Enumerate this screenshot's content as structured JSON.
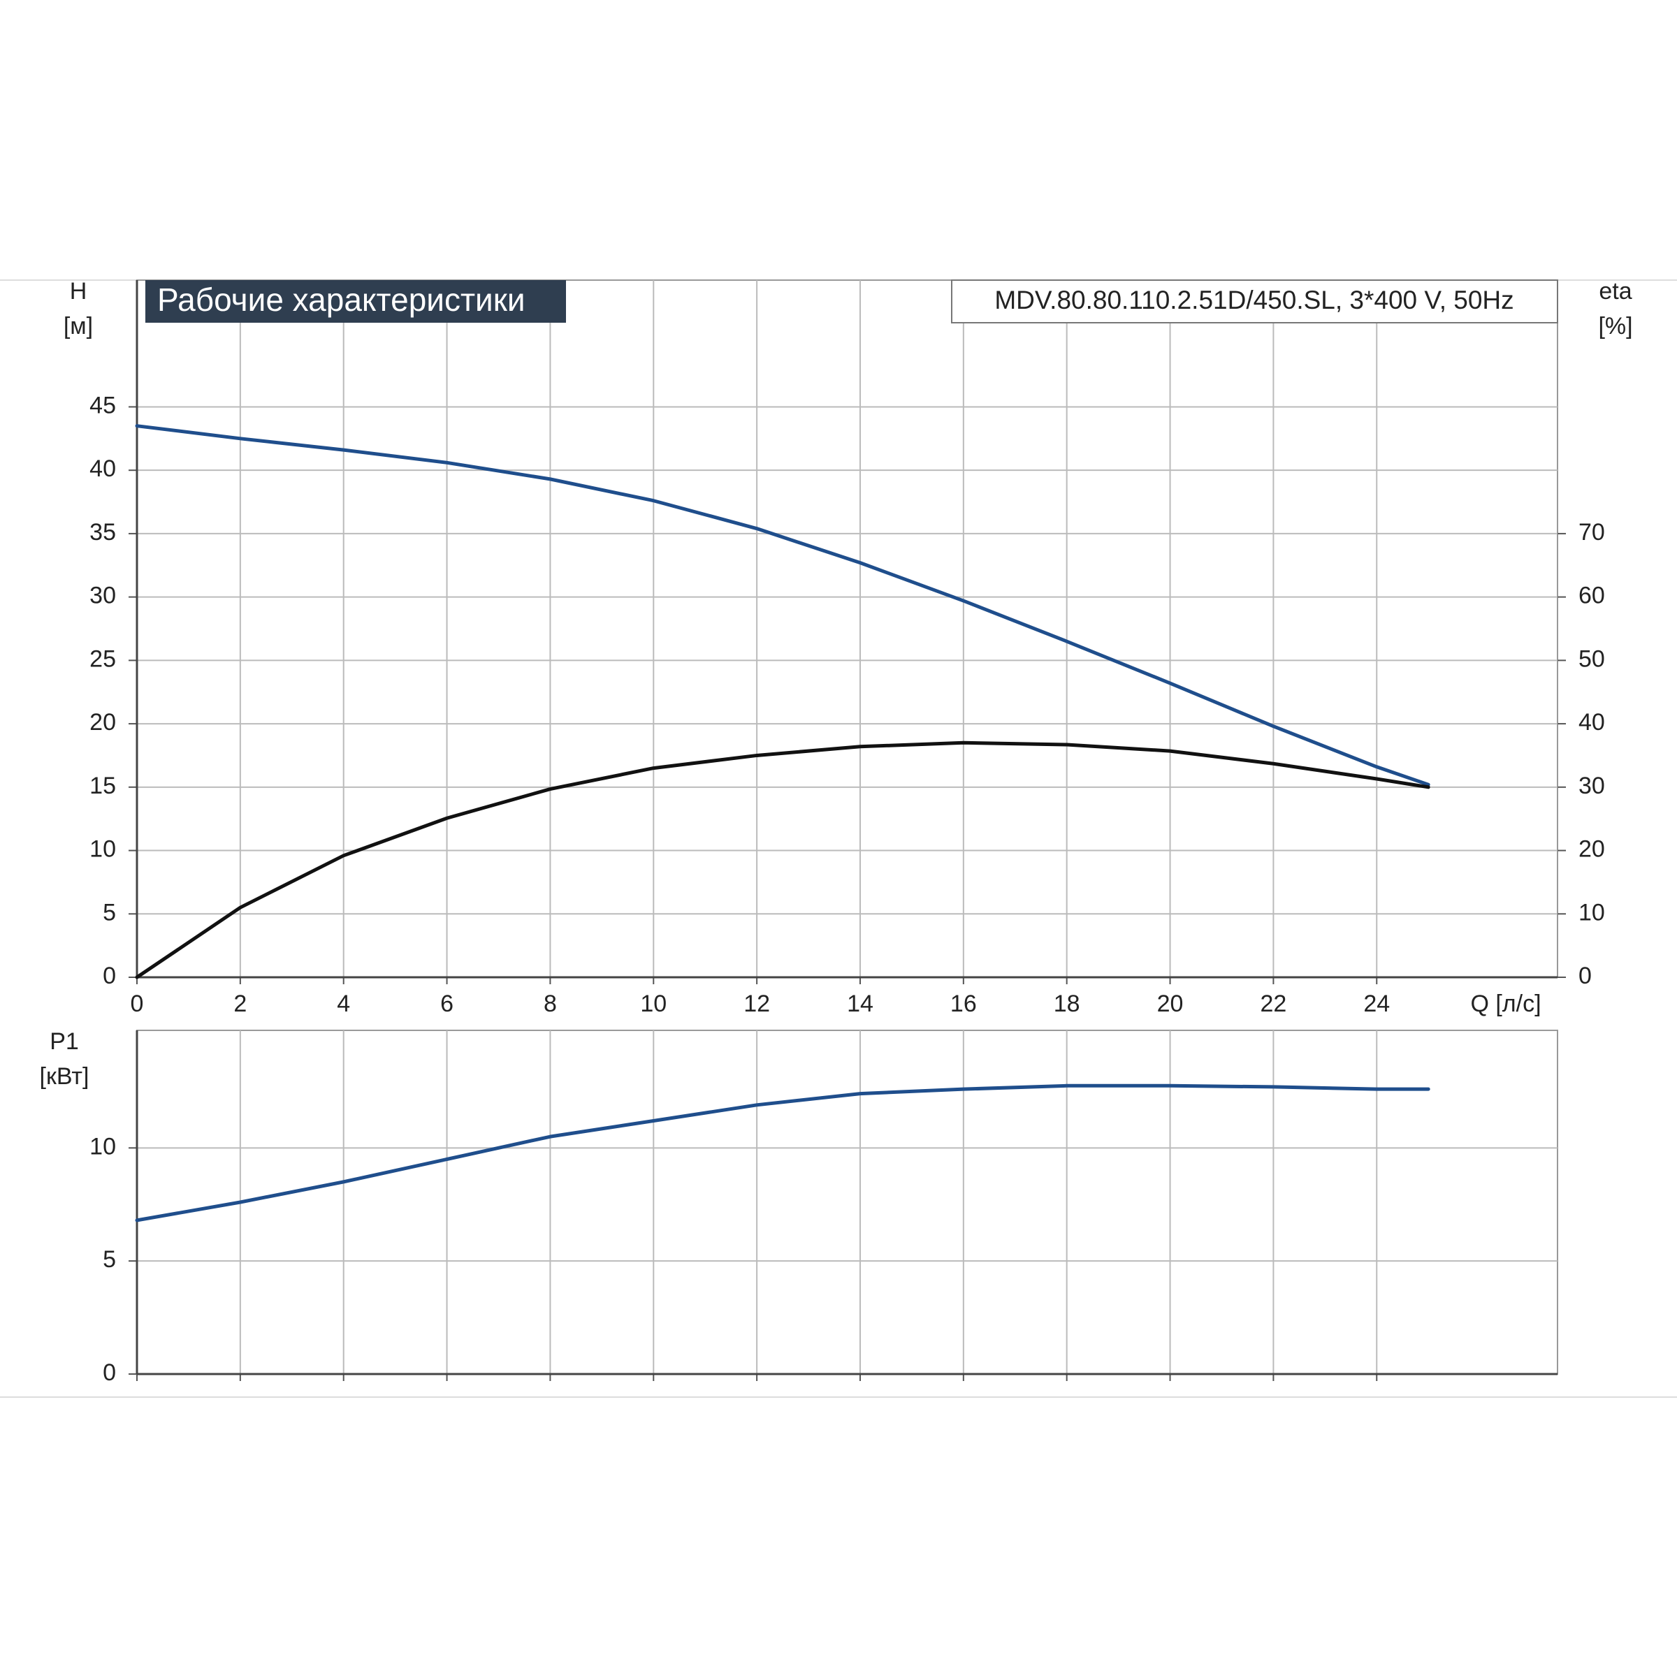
{
  "chart_data": [
    {
      "type": "line",
      "title": "Рабочие характеристики",
      "subtitle": "MDV.80.80.110.2.51D/450.SL, 3*400 V, 50Hz",
      "ylabel": "H",
      "yunit": "[м]",
      "y2label": "eta",
      "y2unit": "[%]",
      "xlabel": "Q [л/с]",
      "x": [
        0,
        2,
        4,
        6,
        8,
        10,
        12,
        14,
        16,
        18,
        20,
        22,
        24,
        25
      ],
      "series": [
        {
          "color": "#1f4e8c",
          "values": [
            43.5,
            42.5,
            41.6,
            40.6,
            39.3,
            37.6,
            35.4,
            32.7,
            29.7,
            26.5,
            23.2,
            19.8,
            16.6,
            15.2
          ]
        },
        {
          "color": "#111111",
          "axis": "y2",
          "values": [
            0,
            11,
            19.2,
            25.1,
            29.7,
            33,
            35,
            36.4,
            37,
            36.7,
            35.7,
            33.7,
            31.3,
            30
          ]
        }
      ],
      "xlim": [
        0,
        27.5
      ],
      "xticks": [
        0,
        2,
        4,
        6,
        8,
        10,
        12,
        14,
        16,
        18,
        20,
        22,
        24
      ],
      "xtick_labels": true,
      "ylim": [
        0,
        55
      ],
      "yticks": [
        0,
        5,
        10,
        15,
        20,
        25,
        30,
        35,
        40,
        45
      ],
      "y2lim": [
        0,
        110
      ],
      "y2ticks": [
        0,
        10,
        20,
        30,
        40,
        50,
        60,
        70
      ],
      "grid": true
    },
    {
      "type": "line",
      "ylabel": "P1",
      "yunit": "[кВт]",
      "x": [
        0,
        2,
        4,
        6,
        8,
        10,
        12,
        14,
        16,
        18,
        20,
        22,
        24,
        25
      ],
      "series": [
        {
          "color": "#1f4e8c",
          "values": [
            6.8,
            7.6,
            8.5,
            9.5,
            10.5,
            11.2,
            11.9,
            12.4,
            12.6,
            12.75,
            12.75,
            12.7,
            12.6,
            12.6
          ]
        }
      ],
      "xlim": [
        0,
        27.5
      ],
      "xticks": [
        0,
        2,
        4,
        6,
        8,
        10,
        12,
        14,
        16,
        18,
        20,
        22,
        24
      ],
      "xtick_labels": false,
      "ylim": [
        0,
        15.2
      ],
      "yticks": [
        0,
        5,
        10
      ],
      "grid": true
    }
  ]
}
